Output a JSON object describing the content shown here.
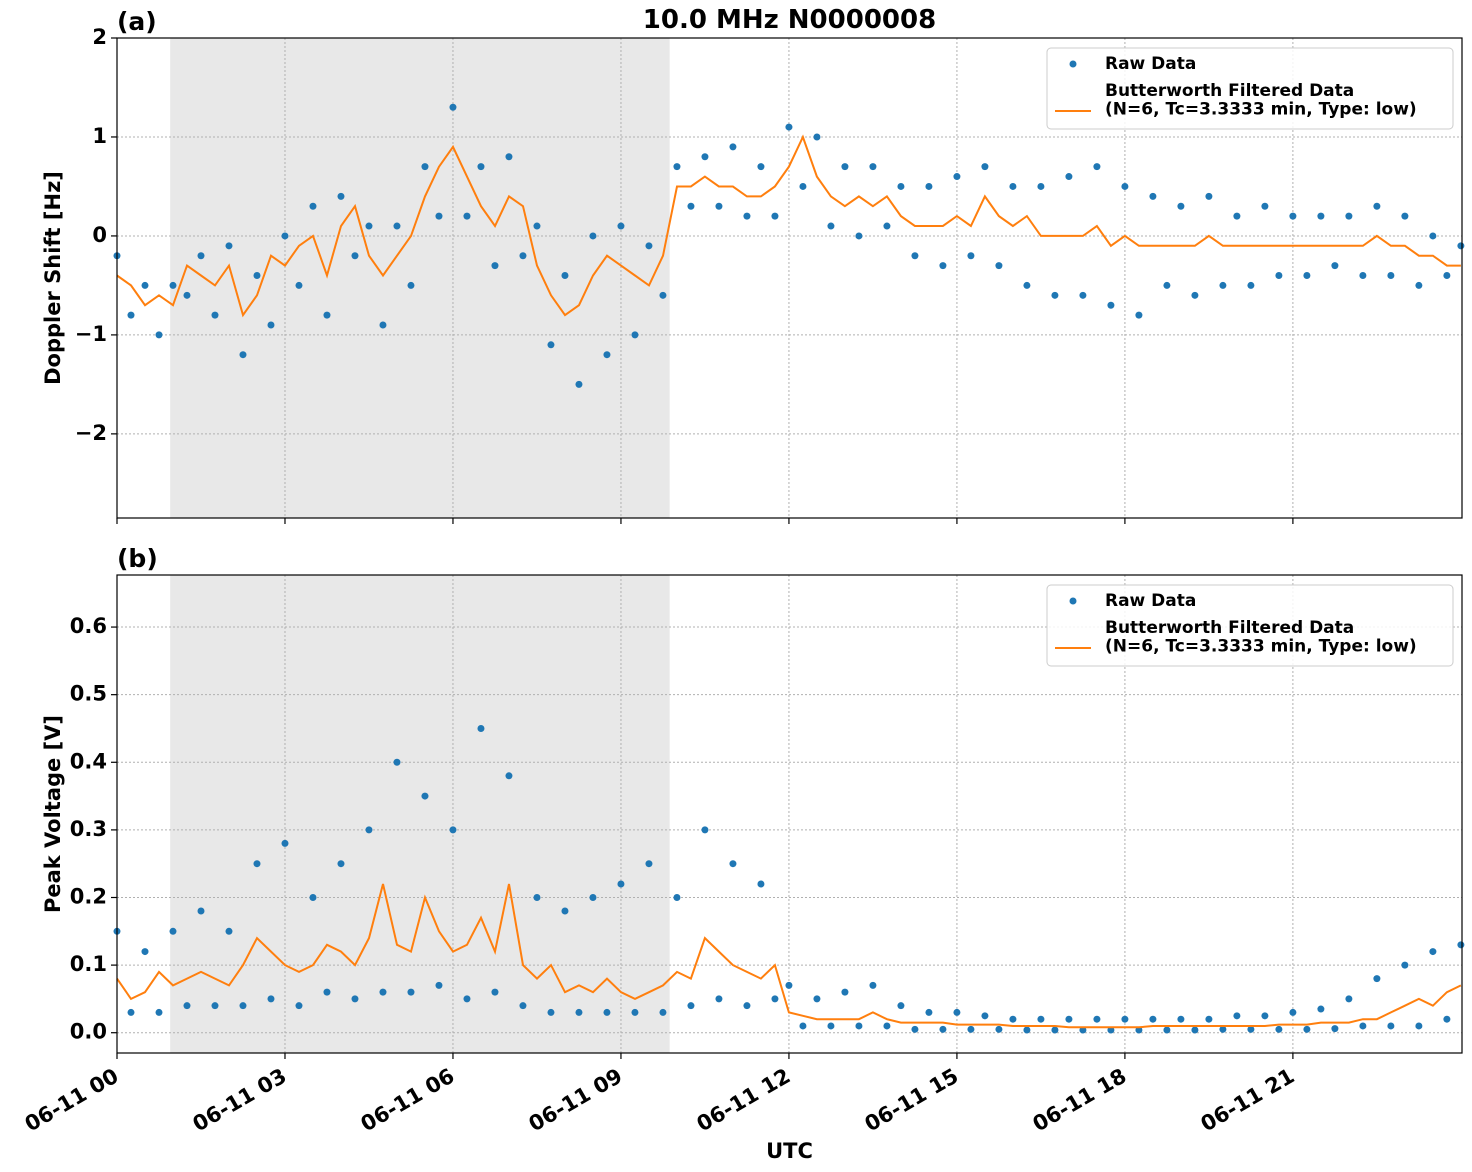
{
  "chart_data": [
    {
      "type": "scatter-line",
      "panel_label": "(a)",
      "title": "10.0 MHz N0000008",
      "y_label": "Doppler Shift [Hz]",
      "xlim": [
        0,
        24.02
      ],
      "ylim": [
        -2.85,
        2.0
      ],
      "xticks": [
        0,
        3,
        6,
        9,
        12,
        15,
        18,
        21
      ],
      "show_xtick_labels": false,
      "yticks": [
        {
          "value": -2,
          "label": "−2"
        },
        {
          "value": -1,
          "label": "−1"
        },
        0,
        1,
        2
      ],
      "grid": true,
      "legend": "upper right",
      "shaded_span": [
        0.95,
        9.87
      ],
      "shade_color": "#e8e8e8",
      "x": [
        0,
        0.25,
        0.5,
        0.75,
        1,
        1.25,
        1.5,
        1.75,
        2,
        2.25,
        2.5,
        2.75,
        3,
        3.25,
        3.5,
        3.75,
        4,
        4.25,
        4.5,
        4.75,
        5,
        5.25,
        5.5,
        5.75,
        6,
        6.25,
        6.5,
        6.75,
        7,
        7.25,
        7.5,
        7.75,
        8,
        8.25,
        8.5,
        8.75,
        9,
        9.25,
        9.5,
        9.75,
        10,
        10.25,
        10.5,
        10.75,
        11,
        11.25,
        11.5,
        11.75,
        12,
        12.25,
        12.5,
        12.75,
        13,
        13.25,
        13.5,
        13.75,
        14,
        14.25,
        14.5,
        14.75,
        15,
        15.25,
        15.5,
        15.75,
        16,
        16.25,
        16.5,
        16.75,
        17,
        17.25,
        17.5,
        17.75,
        18,
        18.25,
        18.5,
        18.75,
        19,
        19.25,
        19.5,
        19.75,
        20,
        20.25,
        20.5,
        20.75,
        21,
        21.25,
        21.5,
        21.75,
        22,
        22.25,
        22.5,
        22.75,
        23,
        23.25,
        23.5,
        23.75,
        24
      ],
      "series": [
        {
          "name": "Raw Data",
          "style": "points",
          "color": "#1f77b4",
          "values": [
            -0.2,
            -0.8,
            -0.5,
            -1.0,
            -0.5,
            -0.6,
            -0.2,
            -0.8,
            -0.1,
            -1.2,
            -0.4,
            -0.9,
            0.0,
            -0.5,
            0.3,
            -0.8,
            0.4,
            -0.2,
            0.1,
            -0.9,
            0.1,
            -0.5,
            0.7,
            0.2,
            1.3,
            0.2,
            0.7,
            -0.3,
            0.8,
            -0.2,
            0.1,
            -1.1,
            -0.4,
            -1.5,
            0.0,
            -1.2,
            0.1,
            -1.0,
            -0.1,
            -0.6,
            0.7,
            0.3,
            0.8,
            0.3,
            0.9,
            0.2,
            0.7,
            0.2,
            1.1,
            0.5,
            1.0,
            0.1,
            0.7,
            0.0,
            0.7,
            0.1,
            0.5,
            -0.2,
            0.5,
            -0.3,
            0.6,
            -0.2,
            0.7,
            -0.3,
            0.5,
            -0.5,
            0.5,
            -0.6,
            0.6,
            -0.6,
            0.7,
            -0.7,
            0.5,
            -0.8,
            0.4,
            -0.5,
            0.3,
            -0.6,
            0.4,
            -0.5,
            0.2,
            -0.5,
            0.3,
            -0.4,
            0.2,
            -0.4,
            0.2,
            -0.3,
            0.2,
            -0.4,
            0.3,
            -0.4,
            0.2,
            -0.5,
            0.0,
            -0.4,
            -0.1
          ]
        },
        {
          "name": "Butterworth Filtered Data\n(N=6, Tc=3.3333 min, Type: low)",
          "style": "line",
          "color": "#ff7f0e",
          "values": [
            -0.4,
            -0.5,
            -0.7,
            -0.6,
            -0.7,
            -0.3,
            -0.4,
            -0.5,
            -0.3,
            -0.8,
            -0.6,
            -0.2,
            -0.3,
            -0.1,
            0.0,
            -0.4,
            0.1,
            0.3,
            -0.2,
            -0.4,
            -0.2,
            0.0,
            0.4,
            0.7,
            0.9,
            0.6,
            0.3,
            0.1,
            0.4,
            0.3,
            -0.3,
            -0.6,
            -0.8,
            -0.7,
            -0.4,
            -0.2,
            -0.3,
            -0.4,
            -0.5,
            -0.2,
            0.5,
            0.5,
            0.6,
            0.5,
            0.5,
            0.4,
            0.4,
            0.5,
            0.7,
            1.0,
            0.6,
            0.4,
            0.3,
            0.4,
            0.3,
            0.4,
            0.2,
            0.1,
            0.1,
            0.1,
            0.2,
            0.1,
            0.4,
            0.2,
            0.1,
            0.2,
            0.0,
            0.0,
            0.0,
            0.0,
            0.1,
            -0.1,
            0.0,
            -0.1,
            -0.1,
            -0.1,
            -0.1,
            -0.1,
            0.0,
            -0.1,
            -0.1,
            -0.1,
            -0.1,
            -0.1,
            -0.1,
            -0.1,
            -0.1,
            -0.1,
            -0.1,
            -0.1,
            0.0,
            -0.1,
            -0.1,
            -0.2,
            -0.2,
            -0.3,
            -0.3
          ]
        }
      ]
    },
    {
      "type": "scatter-line",
      "panel_label": "(b)",
      "y_label": "Peak Voltage [V]",
      "x_label": "UTC",
      "xlim": [
        0,
        24.02
      ],
      "ylim": [
        -0.03,
        0.677
      ],
      "xticks": [
        {
          "value": 0,
          "label": "06-11 00"
        },
        {
          "value": 3,
          "label": "06-11 03"
        },
        {
          "value": 6,
          "label": "06-11 06"
        },
        {
          "value": 9,
          "label": "06-11 09"
        },
        {
          "value": 12,
          "label": "06-11 12"
        },
        {
          "value": 15,
          "label": "06-11 15"
        },
        {
          "value": 18,
          "label": "06-11 18"
        },
        {
          "value": 21,
          "label": "06-11 21"
        }
      ],
      "show_xtick_labels": true,
      "yticks": [
        {
          "value": 0,
          "label": "0.0"
        },
        0.1,
        0.2,
        0.3,
        0.4,
        0.5,
        0.6
      ],
      "grid": true,
      "legend": "upper right",
      "shaded_span": [
        0.95,
        9.87
      ],
      "shade_color": "#e8e8e8",
      "x": [
        0,
        0.25,
        0.5,
        0.75,
        1,
        1.25,
        1.5,
        1.75,
        2,
        2.25,
        2.5,
        2.75,
        3,
        3.25,
        3.5,
        3.75,
        4,
        4.25,
        4.5,
        4.75,
        5,
        5.25,
        5.5,
        5.75,
        6,
        6.25,
        6.5,
        6.75,
        7,
        7.25,
        7.5,
        7.75,
        8,
        8.25,
        8.5,
        8.75,
        9,
        9.25,
        9.5,
        9.75,
        10,
        10.25,
        10.5,
        10.75,
        11,
        11.25,
        11.5,
        11.75,
        12,
        12.25,
        12.5,
        12.75,
        13,
        13.25,
        13.5,
        13.75,
        14,
        14.25,
        14.5,
        14.75,
        15,
        15.25,
        15.5,
        15.75,
        16,
        16.25,
        16.5,
        16.75,
        17,
        17.25,
        17.5,
        17.75,
        18,
        18.25,
        18.5,
        18.75,
        19,
        19.25,
        19.5,
        19.75,
        20,
        20.25,
        20.5,
        20.75,
        21,
        21.25,
        21.5,
        21.75,
        22,
        22.25,
        22.5,
        22.75,
        23,
        23.25,
        23.5,
        23.75,
        24
      ],
      "series": [
        {
          "name": "Raw Data",
          "style": "points",
          "color": "#1f77b4",
          "values": [
            0.15,
            0.03,
            0.12,
            0.03,
            0.15,
            0.04,
            0.18,
            0.04,
            0.15,
            0.04,
            0.25,
            0.05,
            0.28,
            0.04,
            0.2,
            0.06,
            0.25,
            0.05,
            0.3,
            0.06,
            0.4,
            0.06,
            0.35,
            0.07,
            0.3,
            0.05,
            0.45,
            0.06,
            0.38,
            0.04,
            0.2,
            0.03,
            0.18,
            0.03,
            0.2,
            0.03,
            0.22,
            0.03,
            0.25,
            0.03,
            0.2,
            0.04,
            0.3,
            0.05,
            0.25,
            0.04,
            0.22,
            0.05,
            0.07,
            0.01,
            0.05,
            0.01,
            0.06,
            0.01,
            0.07,
            0.01,
            0.04,
            0.005,
            0.03,
            0.005,
            0.03,
            0.005,
            0.025,
            0.005,
            0.02,
            0.004,
            0.02,
            0.004,
            0.02,
            0.004,
            0.02,
            0.004,
            0.02,
            0.004,
            0.02,
            0.004,
            0.02,
            0.004,
            0.02,
            0.005,
            0.025,
            0.005,
            0.025,
            0.005,
            0.03,
            0.005,
            0.035,
            0.006,
            0.05,
            0.01,
            0.08,
            0.01,
            0.1,
            0.01,
            0.12,
            0.02,
            0.13
          ]
        },
        {
          "name": "Butterworth Filtered Data\n(N=6, Tc=3.3333 min, Type: low)",
          "style": "line",
          "color": "#ff7f0e",
          "values": [
            0.08,
            0.05,
            0.06,
            0.09,
            0.07,
            0.08,
            0.09,
            0.08,
            0.07,
            0.1,
            0.14,
            0.12,
            0.1,
            0.09,
            0.1,
            0.13,
            0.12,
            0.1,
            0.14,
            0.22,
            0.13,
            0.12,
            0.2,
            0.15,
            0.12,
            0.13,
            0.17,
            0.12,
            0.22,
            0.1,
            0.08,
            0.1,
            0.06,
            0.07,
            0.06,
            0.08,
            0.06,
            0.05,
            0.06,
            0.07,
            0.09,
            0.08,
            0.14,
            0.12,
            0.1,
            0.09,
            0.08,
            0.1,
            0.03,
            0.025,
            0.02,
            0.02,
            0.02,
            0.02,
            0.03,
            0.02,
            0.015,
            0.015,
            0.015,
            0.015,
            0.012,
            0.012,
            0.012,
            0.012,
            0.01,
            0.01,
            0.01,
            0.01,
            0.008,
            0.008,
            0.008,
            0.008,
            0.008,
            0.008,
            0.01,
            0.01,
            0.01,
            0.01,
            0.01,
            0.01,
            0.01,
            0.01,
            0.01,
            0.012,
            0.012,
            0.012,
            0.015,
            0.015,
            0.015,
            0.02,
            0.02,
            0.03,
            0.04,
            0.05,
            0.04,
            0.06,
            0.07
          ]
        }
      ]
    }
  ]
}
